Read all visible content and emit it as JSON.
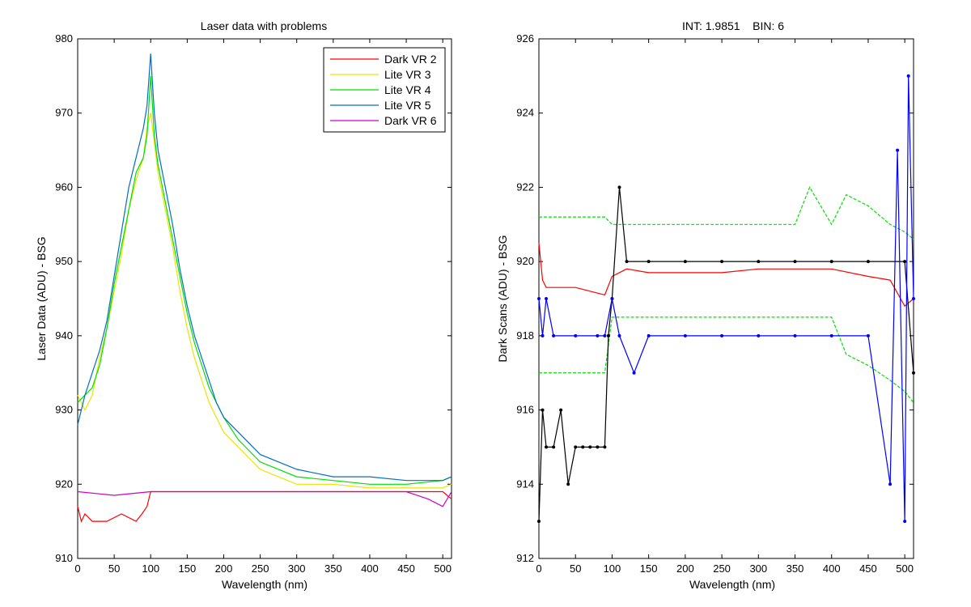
{
  "chart_data": [
    {
      "type": "line",
      "title": "Laser data with problems",
      "xlabel": "Wavelength (nm)",
      "ylabel": "Laser Data (ADU) - BSG",
      "xlim": [
        0,
        512
      ],
      "ylim": [
        910,
        980
      ],
      "xticks": [
        0,
        50,
        100,
        150,
        200,
        250,
        300,
        350,
        400,
        450,
        500
      ],
      "yticks": [
        910,
        920,
        930,
        940,
        950,
        960,
        970,
        980
      ],
      "grid": false,
      "legend": "top-right",
      "series": [
        {
          "name": "Dark VR 2",
          "color": "#ff0000",
          "x": [
            0,
            5,
            10,
            20,
            40,
            60,
            80,
            88,
            95,
            100,
            120,
            150,
            200,
            300,
            400,
            480,
            500,
            512
          ],
          "y": [
            917,
            915,
            916,
            915,
            915,
            916,
            915,
            916,
            917,
            919,
            919,
            919,
            919,
            919,
            919,
            919,
            919,
            918
          ]
        },
        {
          "name": "Lite VR 3",
          "color": "#e6e600",
          "x": [
            0,
            10,
            20,
            30,
            40,
            50,
            60,
            70,
            80,
            90,
            95,
            100,
            105,
            110,
            120,
            130,
            140,
            150,
            160,
            170,
            180,
            190,
            200,
            220,
            250,
            300,
            350,
            400,
            450,
            500,
            512
          ],
          "y": [
            932,
            930,
            932,
            937,
            941,
            946,
            951,
            957,
            961,
            964,
            968,
            970,
            966,
            962,
            957,
            952,
            946,
            941,
            937,
            934,
            931,
            929,
            927,
            925,
            922,
            920,
            920,
            919.5,
            919.5,
            919.5,
            920
          ]
        },
        {
          "name": "Lite VR 4",
          "color": "#00e000",
          "x": [
            0,
            10,
            20,
            30,
            40,
            50,
            60,
            70,
            80,
            90,
            95,
            100,
            105,
            110,
            120,
            130,
            140,
            150,
            160,
            170,
            180,
            190,
            200,
            220,
            250,
            300,
            350,
            400,
            450,
            500,
            512
          ],
          "y": [
            931,
            932,
            933,
            936,
            941,
            947,
            952,
            957,
            962,
            964,
            967,
            975,
            967,
            963,
            958,
            953,
            948,
            943,
            939,
            936,
            933,
            931,
            929,
            926,
            923,
            921,
            920.5,
            920,
            920,
            920.5,
            921
          ]
        },
        {
          "name": "Lite VR 5",
          "color": "#0070c0",
          "x": [
            0,
            10,
            20,
            30,
            40,
            50,
            60,
            70,
            80,
            90,
            95,
            100,
            105,
            110,
            120,
            130,
            140,
            150,
            160,
            170,
            180,
            190,
            200,
            220,
            250,
            300,
            350,
            400,
            450,
            500,
            512
          ],
          "y": [
            928,
            932,
            935,
            938,
            942,
            948,
            954,
            960,
            964,
            968,
            971,
            978,
            970,
            965,
            960,
            955,
            949,
            944,
            940,
            937,
            934,
            931,
            929,
            927,
            924,
            922,
            921,
            921,
            920.5,
            920.5,
            921
          ]
        },
        {
          "name": "Dark VR 6",
          "color": "#cc00cc",
          "x": [
            0,
            50,
            100,
            150,
            200,
            250,
            300,
            350,
            400,
            450,
            480,
            500,
            512
          ],
          "y": [
            919,
            918.5,
            919,
            919,
            919,
            919,
            919,
            919,
            919,
            919,
            918,
            917,
            919
          ]
        }
      ]
    },
    {
      "type": "line",
      "title": "INT: 1.9851    BIN: 6",
      "xlabel": "Wavelength (nm)",
      "ylabel": "Dark Scans (ADU) - BSG",
      "xlim": [
        0,
        512
      ],
      "ylim": [
        912,
        926
      ],
      "xticks": [
        0,
        50,
        100,
        150,
        200,
        250,
        300,
        350,
        400,
        450,
        500
      ],
      "yticks": [
        912,
        914,
        916,
        918,
        920,
        922,
        924,
        926
      ],
      "grid": false,
      "legend": "none",
      "series": [
        {
          "color": "#00e000",
          "dashed": true,
          "x": [
            0,
            5,
            10,
            50,
            90,
            100,
            150,
            200,
            250,
            300,
            350,
            370,
            400,
            420,
            450,
            480,
            500,
            512
          ],
          "y": [
            921.2,
            921.2,
            921.2,
            921.2,
            921.2,
            921,
            921,
            921,
            921,
            921,
            921,
            922,
            921,
            921.8,
            921.5,
            921,
            920.8,
            920.6
          ]
        },
        {
          "color": "#00e000",
          "dashed": true,
          "x": [
            0,
            10,
            50,
            90,
            100,
            150,
            200,
            250,
            300,
            350,
            400,
            420,
            450,
            480,
            500,
            512
          ],
          "y": [
            917,
            917,
            917,
            917,
            918.5,
            918.5,
            918.5,
            918.5,
            918.5,
            918.5,
            918.5,
            917.5,
            917.2,
            916.8,
            916.5,
            916.2
          ]
        },
        {
          "color": "#ff0000",
          "x": [
            0,
            5,
            10,
            50,
            90,
            100,
            120,
            150,
            200,
            250,
            300,
            350,
            400,
            450,
            480,
            500,
            512
          ],
          "y": [
            920.5,
            919.5,
            919.3,
            919.3,
            919.1,
            919.6,
            919.8,
            919.7,
            919.7,
            919.7,
            919.8,
            919.8,
            919.8,
            919.6,
            919.5,
            918.8,
            919
          ]
        },
        {
          "color": "#000000",
          "markers": true,
          "x": [
            0,
            5,
            10,
            20,
            30,
            40,
            50,
            60,
            70,
            80,
            90,
            95,
            100,
            110,
            120,
            150,
            200,
            250,
            300,
            350,
            400,
            450,
            500,
            512
          ],
          "y": [
            913,
            916,
            915,
            915,
            916,
            914,
            915,
            915,
            915,
            915,
            915,
            918,
            919,
            922,
            920,
            920,
            920,
            920,
            920,
            920,
            920,
            920,
            920,
            917
          ]
        },
        {
          "color": "#0000ff",
          "markers": true,
          "x": [
            0,
            5,
            10,
            20,
            50,
            80,
            90,
            100,
            110,
            130,
            150,
            200,
            250,
            300,
            350,
            400,
            450,
            480,
            490,
            500,
            505,
            512
          ],
          "y": [
            919,
            918,
            919,
            918,
            918,
            918,
            918,
            919,
            918,
            917,
            918,
            918,
            918,
            918,
            918,
            918,
            918,
            914,
            923,
            913,
            925,
            919
          ]
        }
      ]
    }
  ]
}
